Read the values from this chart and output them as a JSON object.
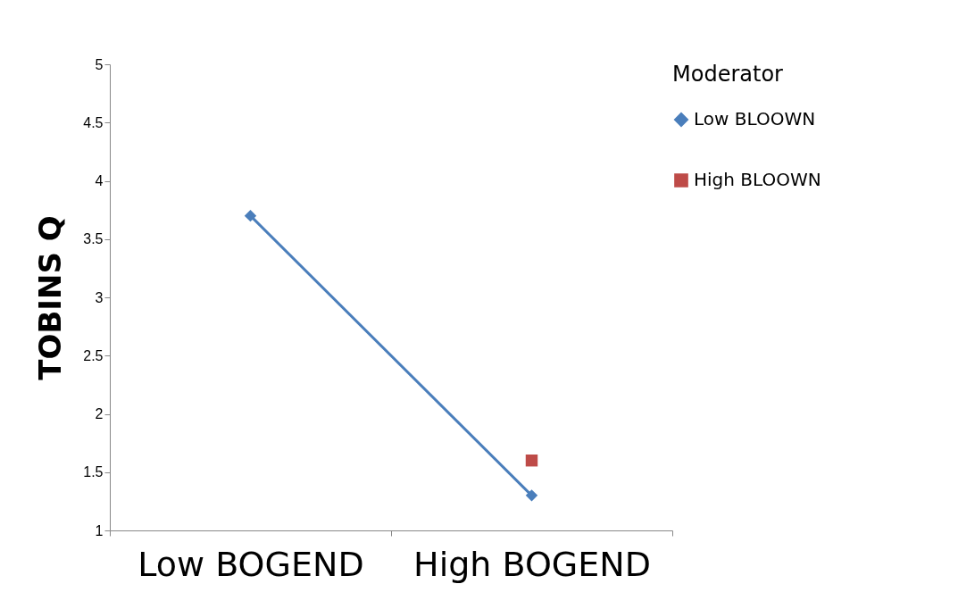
{
  "chart_data": {
    "type": "line",
    "ylabel": "TOBINS Q",
    "legend_title": "Moderator",
    "categories": [
      "Low BOGEND",
      "High BOGEND"
    ],
    "series": [
      {
        "name": "Low BLOOWN",
        "color": "#4a7ebb",
        "marker": "diamond",
        "values": [
          3.7,
          1.3
        ]
      },
      {
        "name": "High BLOOWN",
        "color": "#be4b48",
        "marker": "square",
        "values": [
          null,
          1.6
        ]
      }
    ],
    "ylim": [
      1,
      5
    ],
    "yticks": [
      1,
      1.5,
      2,
      2.5,
      3,
      3.5,
      4,
      4.5,
      5
    ],
    "grid": false,
    "legend": "right"
  }
}
